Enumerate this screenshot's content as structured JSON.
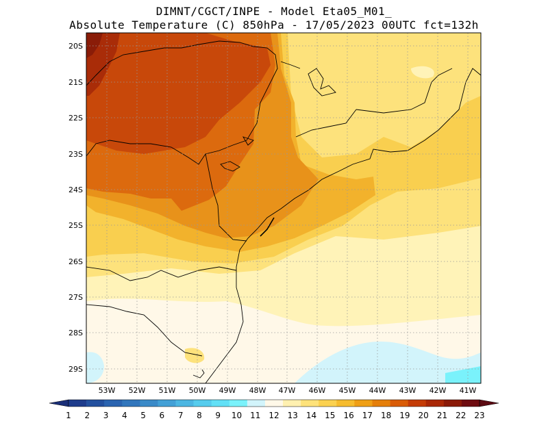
{
  "header": {
    "line1": "DIMNT/CGCT/INPE -  Model Eta05_M01_",
    "line2": "Absolute Temperature (C) 850hPa -  17/05/2023 00UTC fct=132h"
  },
  "map": {
    "lat_labels": [
      "20S",
      "21S",
      "22S",
      "23S",
      "24S",
      "25S",
      "26S",
      "27S",
      "28S",
      "29S"
    ],
    "lon_labels": [
      "53W",
      "52W",
      "51W",
      "50W",
      "49W",
      "48W",
      "47W",
      "46W",
      "45W",
      "44W",
      "43W",
      "42W",
      "41W"
    ],
    "gridlines": "dotted"
  },
  "colorbar": {
    "labels": [
      "1",
      "2",
      "3",
      "4",
      "5",
      "6",
      "7",
      "8",
      "9",
      "10",
      "11",
      "12",
      "13",
      "14",
      "15",
      "16",
      "17",
      "18",
      "19",
      "20",
      "21",
      "22",
      "23"
    ],
    "colors": [
      "#1e3c8c",
      "#23509e",
      "#2a64b0",
      "#3176bc",
      "#3a8ac8",
      "#43a0d6",
      "#4cb6e2",
      "#56cced",
      "#62e0f6",
      "#7af2fb",
      "#d2f4fb",
      "#fff8e8",
      "#fff0b0",
      "#fee27a",
      "#fbd150",
      "#f6bc2e",
      "#ef9f16",
      "#e57f0a",
      "#d95c06",
      "#c43c06",
      "#a92806",
      "#8a1a08",
      "#6e0c10"
    ],
    "left_arrow_color": "#1a2f78",
    "right_arrow_color": "#5c0a12"
  }
}
